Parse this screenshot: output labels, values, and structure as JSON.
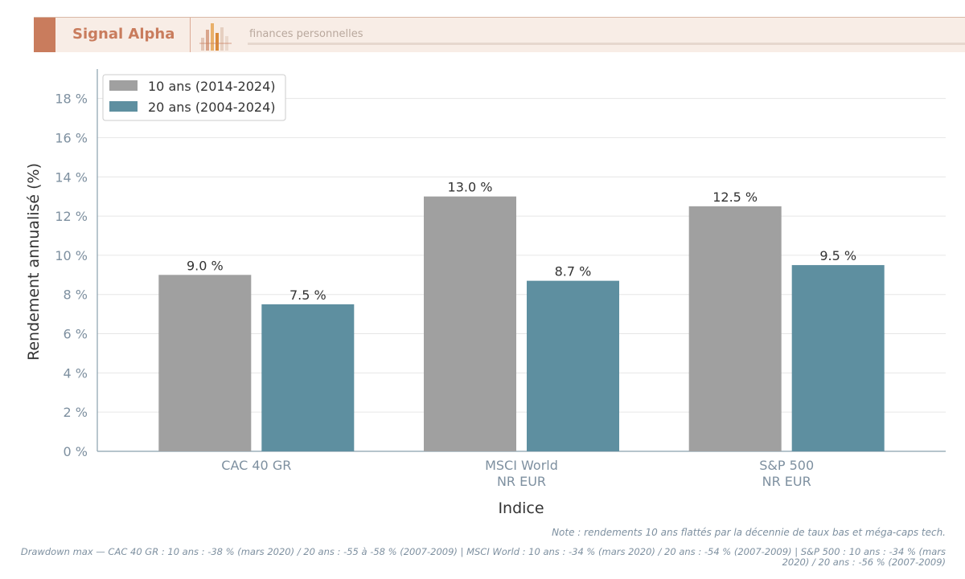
{
  "header": {
    "brand": "Signal Alpha",
    "subtitle": "finances personnelles",
    "accent_color": "#c97c5d",
    "logo_icon": "bar-chart-logo-icon"
  },
  "chart_data": {
    "type": "bar",
    "categories": [
      "CAC 40 GR",
      "MSCI World\nNR EUR",
      "S&P 500\nNR EUR"
    ],
    "series": [
      {
        "name": "10 ans (2014-2024)",
        "values": [
          9.0,
          13.0,
          12.5
        ],
        "color": "#a0a0a0"
      },
      {
        "name": "20 ans (2004-2024)",
        "values": [
          7.5,
          8.7,
          9.5
        ],
        "color": "#5e8fa0"
      }
    ],
    "data_labels": [
      [
        "9.0 %",
        "13.0 %",
        "12.5 %"
      ],
      [
        "7.5 %",
        "8.7 %",
        "9.5 %"
      ]
    ],
    "xlabel": "Indice",
    "ylabel": "Rendement annualisé (%)",
    "ylim": [
      0,
      19.5
    ],
    "yticks": [
      0,
      2,
      4,
      6,
      8,
      10,
      12,
      14,
      16,
      18
    ],
    "ytick_labels": [
      "0 %",
      "2 %",
      "4 %",
      "6 %",
      "8 %",
      "10 %",
      "12 %",
      "14 %",
      "16 %",
      "18 %"
    ],
    "grid": "horizontal",
    "legend_position": "top-left"
  },
  "footer": {
    "note": "Note : rendements 10 ans flattés par la décennie de taux bas et méga-caps tech.",
    "drawdown": "Drawdown max — CAC 40 GR : 10 ans : -38 % (mars 2020) / 20 ans : -55 à -58 % (2007-2009) | MSCI World : 10 ans : -34 % (mars 2020) / 20 ans : -54 % (2007-2009) | S&P 500 : 10 ans : -34 % (mars 2020) / 20 ans : -56 % (2007-2009)"
  }
}
